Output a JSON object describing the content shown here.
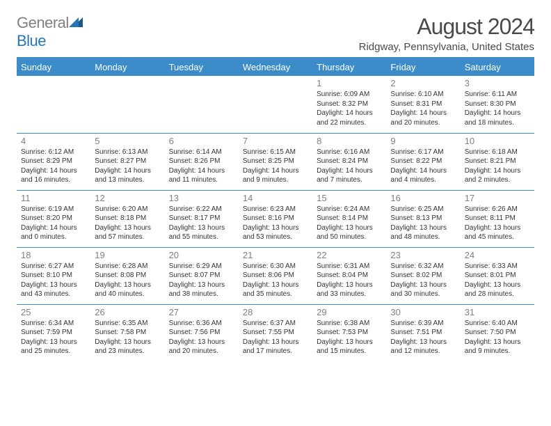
{
  "logo": {
    "grey": "General",
    "blue": "Blue"
  },
  "title": {
    "month": "August 2024",
    "location": "Ridgway, Pennsylvania, United States"
  },
  "colors": {
    "accent": "#3b8cc9",
    "grey_text": "#808080",
    "body_text": "#333333"
  },
  "week_headers": [
    "Sunday",
    "Monday",
    "Tuesday",
    "Wednesday",
    "Thursday",
    "Friday",
    "Saturday"
  ],
  "grid": [
    [
      null,
      null,
      null,
      null,
      {
        "n": "1",
        "sr": "Sunrise: 6:09 AM",
        "ss": "Sunset: 8:32 PM",
        "d1": "Daylight: 14 hours",
        "d2": "and 22 minutes."
      },
      {
        "n": "2",
        "sr": "Sunrise: 6:10 AM",
        "ss": "Sunset: 8:31 PM",
        "d1": "Daylight: 14 hours",
        "d2": "and 20 minutes."
      },
      {
        "n": "3",
        "sr": "Sunrise: 6:11 AM",
        "ss": "Sunset: 8:30 PM",
        "d1": "Daylight: 14 hours",
        "d2": "and 18 minutes."
      }
    ],
    [
      {
        "n": "4",
        "sr": "Sunrise: 6:12 AM",
        "ss": "Sunset: 8:29 PM",
        "d1": "Daylight: 14 hours",
        "d2": "and 16 minutes."
      },
      {
        "n": "5",
        "sr": "Sunrise: 6:13 AM",
        "ss": "Sunset: 8:27 PM",
        "d1": "Daylight: 14 hours",
        "d2": "and 13 minutes."
      },
      {
        "n": "6",
        "sr": "Sunrise: 6:14 AM",
        "ss": "Sunset: 8:26 PM",
        "d1": "Daylight: 14 hours",
        "d2": "and 11 minutes."
      },
      {
        "n": "7",
        "sr": "Sunrise: 6:15 AM",
        "ss": "Sunset: 8:25 PM",
        "d1": "Daylight: 14 hours",
        "d2": "and 9 minutes."
      },
      {
        "n": "8",
        "sr": "Sunrise: 6:16 AM",
        "ss": "Sunset: 8:24 PM",
        "d1": "Daylight: 14 hours",
        "d2": "and 7 minutes."
      },
      {
        "n": "9",
        "sr": "Sunrise: 6:17 AM",
        "ss": "Sunset: 8:22 PM",
        "d1": "Daylight: 14 hours",
        "d2": "and 4 minutes."
      },
      {
        "n": "10",
        "sr": "Sunrise: 6:18 AM",
        "ss": "Sunset: 8:21 PM",
        "d1": "Daylight: 14 hours",
        "d2": "and 2 minutes."
      }
    ],
    [
      {
        "n": "11",
        "sr": "Sunrise: 6:19 AM",
        "ss": "Sunset: 8:20 PM",
        "d1": "Daylight: 14 hours",
        "d2": "and 0 minutes."
      },
      {
        "n": "12",
        "sr": "Sunrise: 6:20 AM",
        "ss": "Sunset: 8:18 PM",
        "d1": "Daylight: 13 hours",
        "d2": "and 57 minutes."
      },
      {
        "n": "13",
        "sr": "Sunrise: 6:22 AM",
        "ss": "Sunset: 8:17 PM",
        "d1": "Daylight: 13 hours",
        "d2": "and 55 minutes."
      },
      {
        "n": "14",
        "sr": "Sunrise: 6:23 AM",
        "ss": "Sunset: 8:16 PM",
        "d1": "Daylight: 13 hours",
        "d2": "and 53 minutes."
      },
      {
        "n": "15",
        "sr": "Sunrise: 6:24 AM",
        "ss": "Sunset: 8:14 PM",
        "d1": "Daylight: 13 hours",
        "d2": "and 50 minutes."
      },
      {
        "n": "16",
        "sr": "Sunrise: 6:25 AM",
        "ss": "Sunset: 8:13 PM",
        "d1": "Daylight: 13 hours",
        "d2": "and 48 minutes."
      },
      {
        "n": "17",
        "sr": "Sunrise: 6:26 AM",
        "ss": "Sunset: 8:11 PM",
        "d1": "Daylight: 13 hours",
        "d2": "and 45 minutes."
      }
    ],
    [
      {
        "n": "18",
        "sr": "Sunrise: 6:27 AM",
        "ss": "Sunset: 8:10 PM",
        "d1": "Daylight: 13 hours",
        "d2": "and 43 minutes."
      },
      {
        "n": "19",
        "sr": "Sunrise: 6:28 AM",
        "ss": "Sunset: 8:08 PM",
        "d1": "Daylight: 13 hours",
        "d2": "and 40 minutes."
      },
      {
        "n": "20",
        "sr": "Sunrise: 6:29 AM",
        "ss": "Sunset: 8:07 PM",
        "d1": "Daylight: 13 hours",
        "d2": "and 38 minutes."
      },
      {
        "n": "21",
        "sr": "Sunrise: 6:30 AM",
        "ss": "Sunset: 8:06 PM",
        "d1": "Daylight: 13 hours",
        "d2": "and 35 minutes."
      },
      {
        "n": "22",
        "sr": "Sunrise: 6:31 AM",
        "ss": "Sunset: 8:04 PM",
        "d1": "Daylight: 13 hours",
        "d2": "and 33 minutes."
      },
      {
        "n": "23",
        "sr": "Sunrise: 6:32 AM",
        "ss": "Sunset: 8:02 PM",
        "d1": "Daylight: 13 hours",
        "d2": "and 30 minutes."
      },
      {
        "n": "24",
        "sr": "Sunrise: 6:33 AM",
        "ss": "Sunset: 8:01 PM",
        "d1": "Daylight: 13 hours",
        "d2": "and 28 minutes."
      }
    ],
    [
      {
        "n": "25",
        "sr": "Sunrise: 6:34 AM",
        "ss": "Sunset: 7:59 PM",
        "d1": "Daylight: 13 hours",
        "d2": "and 25 minutes."
      },
      {
        "n": "26",
        "sr": "Sunrise: 6:35 AM",
        "ss": "Sunset: 7:58 PM",
        "d1": "Daylight: 13 hours",
        "d2": "and 23 minutes."
      },
      {
        "n": "27",
        "sr": "Sunrise: 6:36 AM",
        "ss": "Sunset: 7:56 PM",
        "d1": "Daylight: 13 hours",
        "d2": "and 20 minutes."
      },
      {
        "n": "28",
        "sr": "Sunrise: 6:37 AM",
        "ss": "Sunset: 7:55 PM",
        "d1": "Daylight: 13 hours",
        "d2": "and 17 minutes."
      },
      {
        "n": "29",
        "sr": "Sunrise: 6:38 AM",
        "ss": "Sunset: 7:53 PM",
        "d1": "Daylight: 13 hours",
        "d2": "and 15 minutes."
      },
      {
        "n": "30",
        "sr": "Sunrise: 6:39 AM",
        "ss": "Sunset: 7:51 PM",
        "d1": "Daylight: 13 hours",
        "d2": "and 12 minutes."
      },
      {
        "n": "31",
        "sr": "Sunrise: 6:40 AM",
        "ss": "Sunset: 7:50 PM",
        "d1": "Daylight: 13 hours",
        "d2": "and 9 minutes."
      }
    ]
  ]
}
